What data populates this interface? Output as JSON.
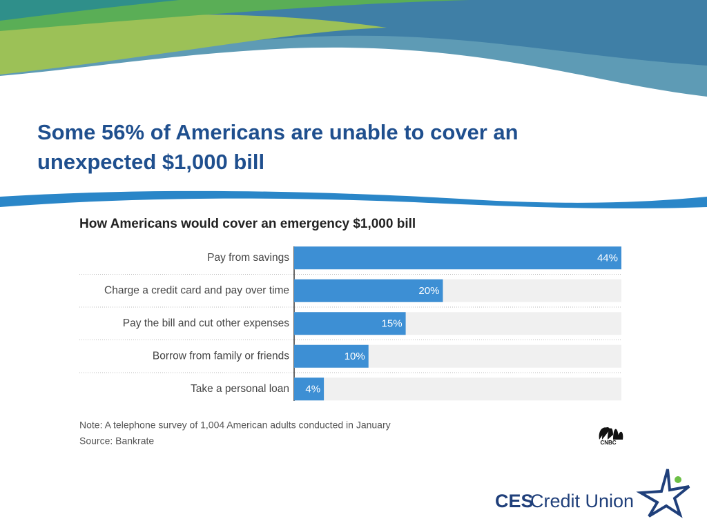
{
  "slide_title": "Some 56% of Americans are unable to cover an unexpected $1,000 bill",
  "chart_data": {
    "type": "hbar",
    "title": "How Americans would cover an emergency $1,000 bill",
    "categories": [
      "Pay from savings",
      "Charge a credit card and pay over time",
      "Pay the bill and cut other expenses",
      "Borrow from family or friends",
      "Take a personal loan"
    ],
    "values": [
      44,
      20,
      15,
      10,
      4
    ],
    "value_labels": [
      "44%",
      "20%",
      "15%",
      "10%",
      "4%"
    ],
    "color": "#3d8fd4",
    "xlim": [
      0,
      44
    ]
  },
  "note": "Note: A telephone survey of 1,004 American adults conducted in January",
  "source": "Source: Bankrate",
  "chart_logo": "CNBC",
  "logo": {
    "bold": "CES",
    "regular": "Credit Union"
  }
}
